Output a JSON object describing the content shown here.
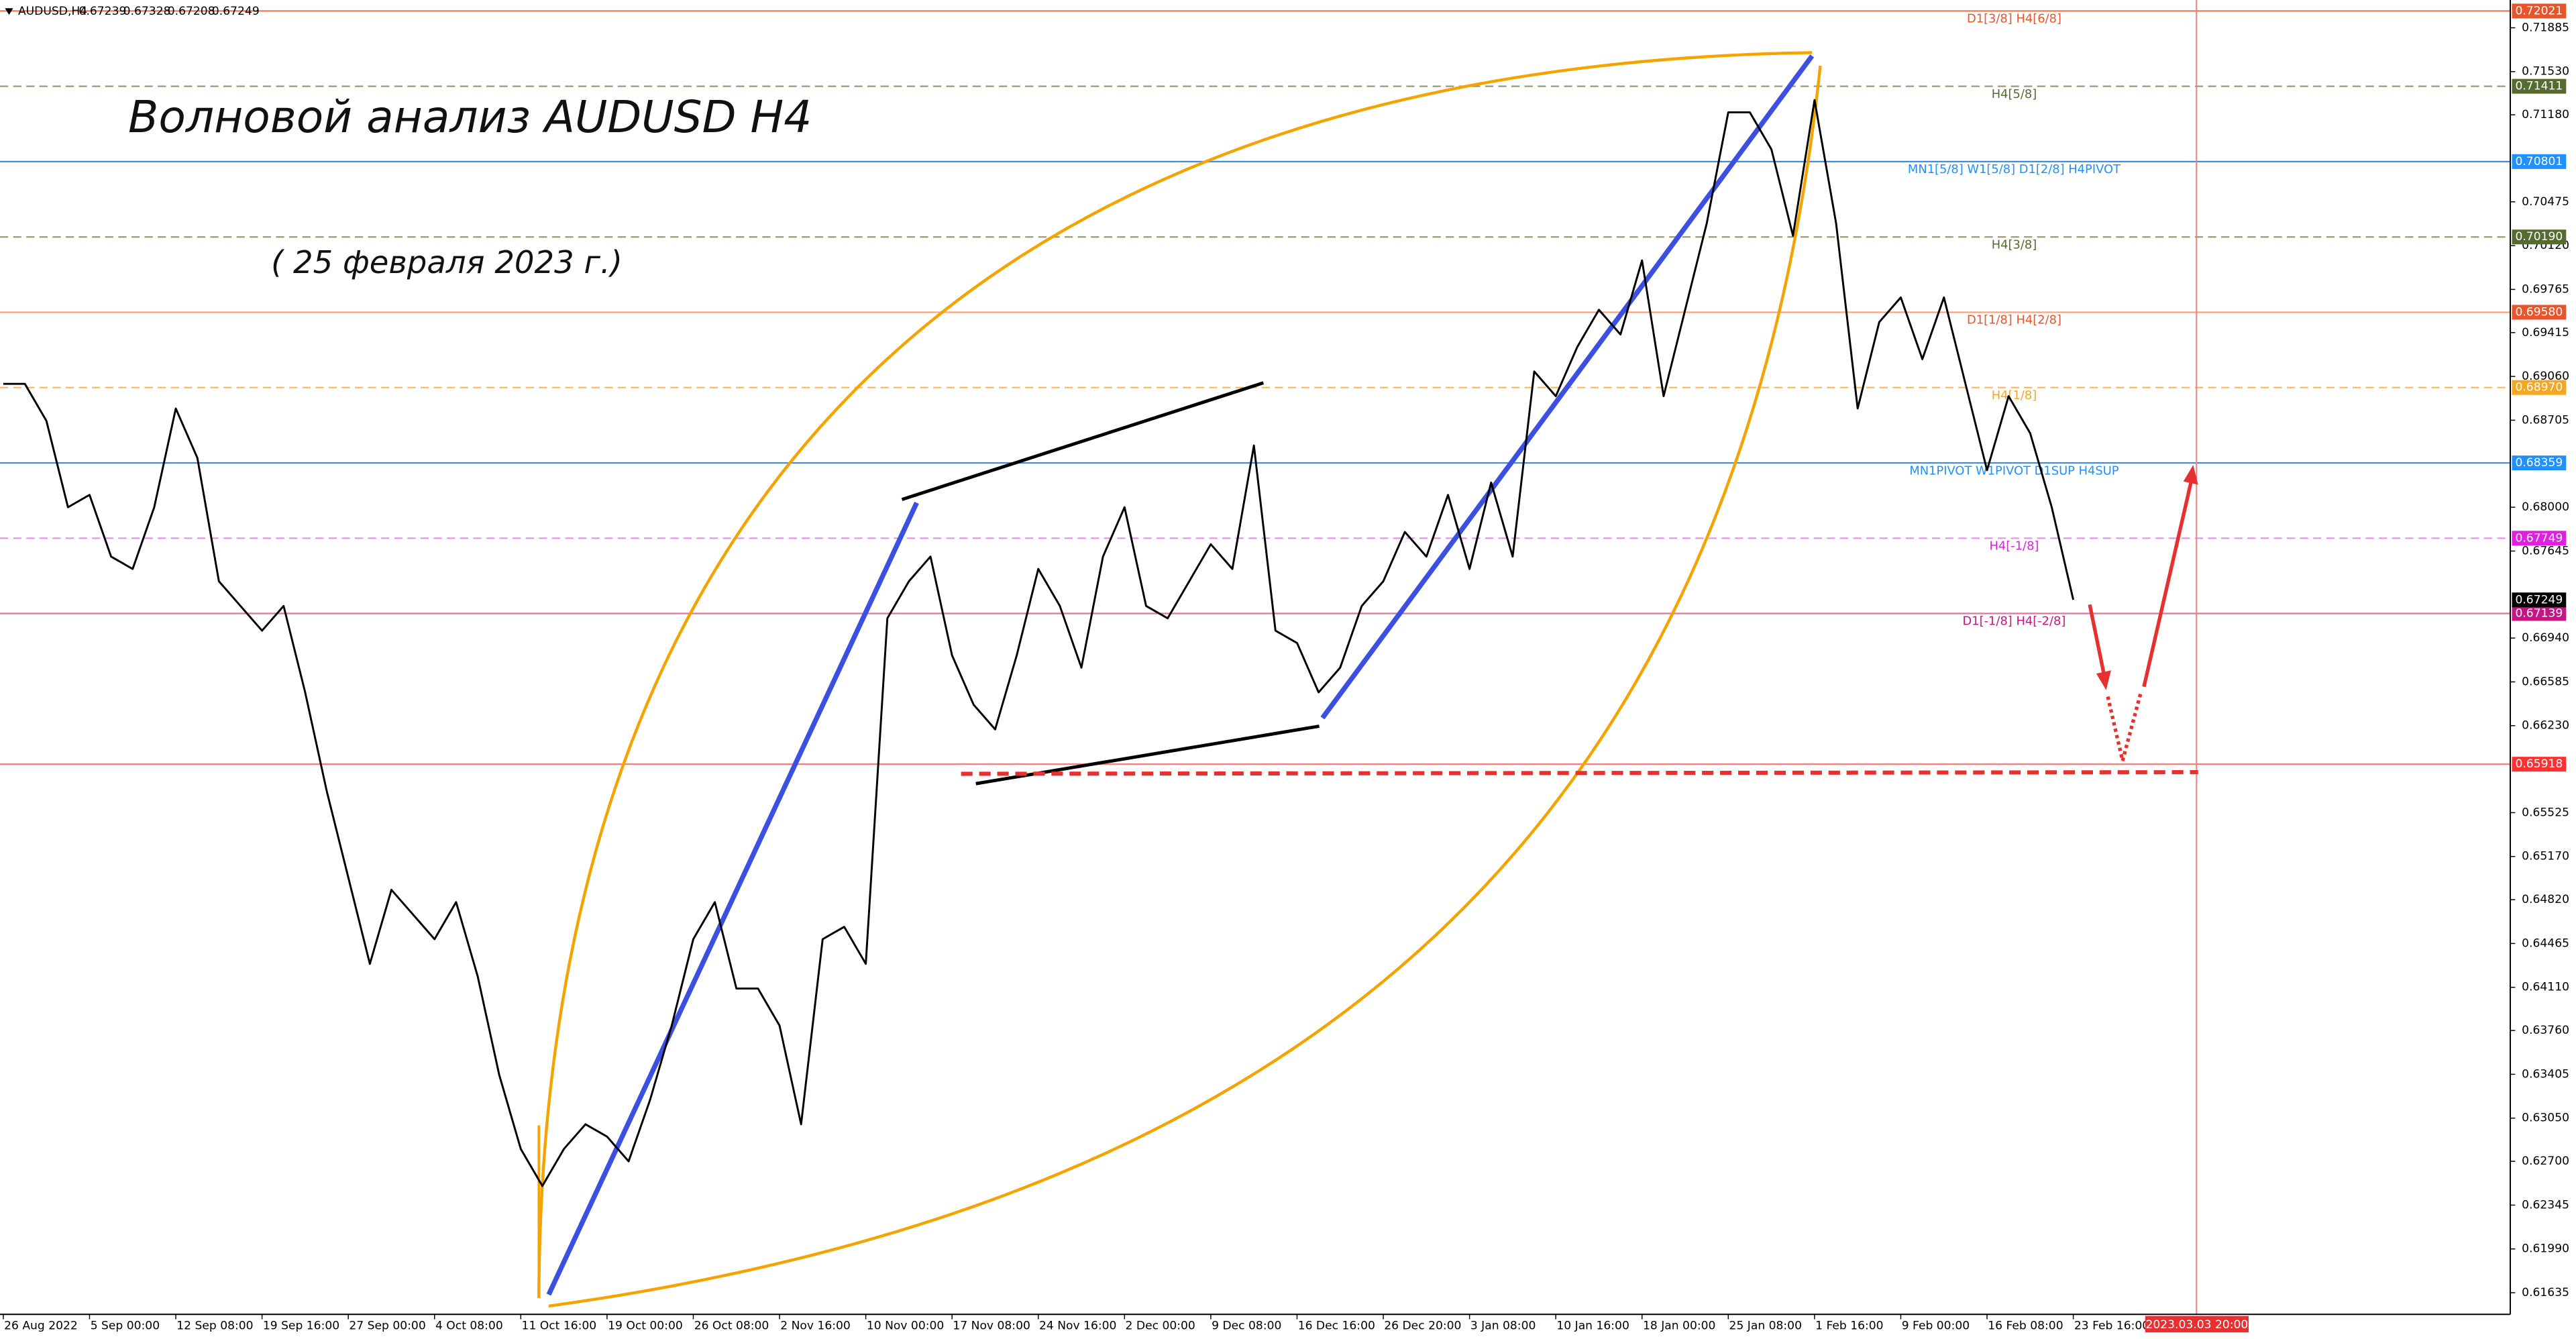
{
  "chart_data": {
    "type": "line",
    "symbol": "AUDUSD,H4",
    "ohlc": [
      0.67239,
      0.67328,
      0.67208,
      0.67249
    ],
    "title": "Волновой анализ AUDUSD H4",
    "subtitle": "( 25 февраля 2023 г.)",
    "categories": [
      "26 Aug 2022",
      null,
      null,
      null,
      "5 Sep 00:00",
      null,
      null,
      null,
      "12 Sep 08:00",
      null,
      null,
      null,
      "19 Sep 16:00",
      null,
      null,
      null,
      "27 Sep 00:00",
      null,
      null,
      null,
      "4 Oct 08:00",
      null,
      null,
      null,
      "11 Oct 16:00",
      null,
      null,
      null,
      "19 Oct 00:00",
      null,
      null,
      null,
      "26 Oct 08:00",
      null,
      null,
      null,
      "2 Nov 16:00",
      null,
      null,
      null,
      "10 Nov 00:00",
      null,
      null,
      null,
      "17 Nov 08:00",
      null,
      null,
      null,
      "24 Nov 16:00",
      null,
      null,
      null,
      "2 Dec 00:00",
      null,
      null,
      null,
      "9 Dec 08:00",
      null,
      null,
      null,
      "16 Dec 16:00",
      null,
      null,
      null,
      "26 Dec 20:00",
      null,
      null,
      null,
      "3 Jan 08:00",
      null,
      null,
      null,
      "10 Jan 16:00",
      null,
      null,
      null,
      "18 Jan 00:00",
      null,
      null,
      null,
      "25 Jan 08:00",
      null,
      null,
      null,
      "1 Feb 16:00",
      null,
      null,
      null,
      "9 Feb 00:00",
      null,
      null,
      null,
      "16 Feb 08:00",
      null,
      null,
      null,
      "23 Feb 16:00",
      null,
      null,
      null,
      null,
      null,
      "2023.03.03 20:00"
    ],
    "series": [
      {
        "color": "#000000",
        "values": [
          0.69,
          0.69,
          0.687,
          0.68,
          0.681,
          0.676,
          0.675,
          0.68,
          0.688,
          0.684,
          0.674,
          0.672,
          0.67,
          0.672,
          0.665,
          0.657,
          0.65,
          0.643,
          0.649,
          0.647,
          0.645,
          0.648,
          0.642,
          0.634,
          0.628,
          0.625,
          0.628,
          0.63,
          0.629,
          0.627,
          0.632,
          0.638,
          0.645,
          0.648,
          0.641,
          0.641,
          0.638,
          0.63,
          0.645,
          0.646,
          0.643,
          0.671,
          0.674,
          0.676,
          0.668,
          0.664,
          0.662,
          0.668,
          0.675,
          0.672,
          0.667,
          0.676,
          0.68,
          0.672,
          0.671,
          0.674,
          0.677,
          0.675,
          0.685,
          0.67,
          0.669,
          0.665,
          0.667,
          0.672,
          0.674,
          0.678,
          0.676,
          0.681,
          0.675,
          0.682,
          0.676,
          0.691,
          0.689,
          0.693,
          0.696,
          0.694,
          0.7,
          0.689,
          0.696,
          0.703,
          0.712,
          0.712,
          0.709,
          0.702,
          0.713,
          0.703,
          0.688,
          0.695,
          0.697,
          0.692,
          0.697,
          0.69,
          0.683,
          0.689,
          0.686,
          0.68,
          0.6725,
          null,
          null,
          null,
          null,
          null,
          null
        ]
      }
    ],
    "ylim": [
      0.6146,
      0.7211
    ],
    "yticks": [
      {
        "value": 0.71885,
        "label": "0.71885"
      },
      {
        "value": 0.7153,
        "label": "0.71530"
      },
      {
        "value": 0.7118,
        "label": "0.71180"
      },
      {
        "value": 0.70475,
        "label": "0.70475"
      },
      {
        "value": 0.7012,
        "label": "0.70120"
      },
      {
        "value": 0.69765,
        "label": "0.69765"
      },
      {
        "value": 0.69415,
        "label": "0.69415"
      },
      {
        "value": 0.6906,
        "label": "0.69060"
      },
      {
        "value": 0.68705,
        "label": "0.68705"
      },
      {
        "value": 0.68,
        "label": "0.68000"
      },
      {
        "value": 0.67645,
        "label": "0.67645"
      },
      {
        "value": 0.6694,
        "label": "0.66940"
      },
      {
        "value": 0.66585,
        "label": "0.66585"
      },
      {
        "value": 0.6623,
        "label": "0.66230"
      },
      {
        "value": 0.65525,
        "label": "0.65525"
      },
      {
        "value": 0.6517,
        "label": "0.65170"
      },
      {
        "value": 0.6482,
        "label": "0.64820"
      },
      {
        "value": 0.64465,
        "label": "0.64465"
      },
      {
        "value": 0.6411,
        "label": "0.64110"
      },
      {
        "value": 0.6376,
        "label": "0.63760"
      },
      {
        "value": 0.63405,
        "label": "0.63405"
      },
      {
        "value": 0.6305,
        "label": "0.63050"
      },
      {
        "value": 0.627,
        "label": "0.62700"
      },
      {
        "value": 0.62345,
        "label": "0.62345"
      },
      {
        "value": 0.6199,
        "label": "0.61990"
      },
      {
        "value": 0.61635,
        "label": "0.61635"
      }
    ],
    "levels": [
      {
        "value": 0.72021,
        "value_label": "0.72021",
        "label": "D1[3/8] H4[6/8]",
        "color": "#f07a50",
        "text_color": "#e8552a",
        "style": "solid"
      },
      {
        "value": 0.71411,
        "value_label": "0.71411",
        "label": "H4[5/8]",
        "color": "#9a9a78",
        "text_color": "#556b2f",
        "style": "dashed"
      },
      {
        "value": 0.70801,
        "value_label": "0.70801",
        "label": "MN1[5/8] W1[5/8] D1[2/8] H4PIVOT",
        "color": "#3a8ee6",
        "text_color": "#1e90ff",
        "style": "solid"
      },
      {
        "value": 0.7019,
        "value_label": "0.70190",
        "label": "H4[3/8]",
        "color": "#9a9a78",
        "text_color": "#556b2f",
        "style": "dashed"
      },
      {
        "value": 0.6958,
        "value_label": "0.69580",
        "label": "D1[1/8] H4[2/8]",
        "color": "#f4a582",
        "text_color": "#e8552a",
        "style": "solid"
      },
      {
        "value": 0.6897,
        "value_label": "0.68970",
        "label": "H4[1/8]",
        "color": "#f5b860",
        "text_color": "#f5a623",
        "style": "dashed"
      },
      {
        "value": 0.68359,
        "value_label": "0.68359",
        "label": "MN1PIVOT W1PIVOT D1SUP H4SUP",
        "color": "#3a8ee6",
        "text_color": "#1e90ff",
        "style": "solid"
      },
      {
        "value": 0.67749,
        "value_label": "0.67749",
        "label": "H4[-1/8]",
        "color": "#f08cf0",
        "text_color": "#e020e0",
        "style": "dashed"
      },
      {
        "value": 0.67139,
        "value_label": "0.67139",
        "label": "D1[-1/8] H4[-2/8]",
        "color": "#e8709a",
        "text_color": "#c71585",
        "style": "solid"
      },
      {
        "value": 0.65918,
        "value_label": "0.65918",
        "color": "#f08080",
        "text_color": "#ff3030",
        "style": "solid"
      }
    ],
    "current_price": 0.67249
  }
}
